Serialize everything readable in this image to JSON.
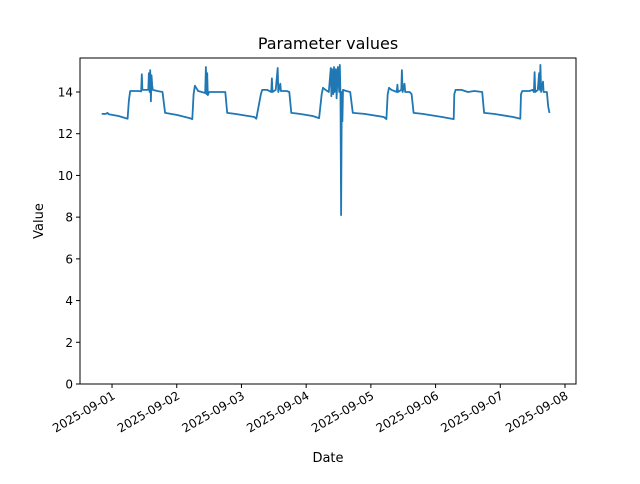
{
  "chart_data": {
    "type": "line",
    "title": "Parameter values",
    "xlabel": "Date",
    "ylabel": "Value",
    "x_unit": "days since 2025-09-01",
    "xlim": [
      -0.495,
      7.17
    ],
    "ylim": [
      0,
      15.63
    ],
    "grid": false,
    "line_color": "#1f77b4",
    "xticks": [
      {
        "value": 0,
        "label": "2025-09-01"
      },
      {
        "value": 1,
        "label": "2025-09-02"
      },
      {
        "value": 2,
        "label": "2025-09-03"
      },
      {
        "value": 3,
        "label": "2025-09-04"
      },
      {
        "value": 4,
        "label": "2025-09-05"
      },
      {
        "value": 5,
        "label": "2025-09-06"
      },
      {
        "value": 6,
        "label": "2025-09-07"
      },
      {
        "value": 7,
        "label": "2025-09-08"
      }
    ],
    "yticks": [
      {
        "value": 0,
        "label": "0"
      },
      {
        "value": 2,
        "label": "2"
      },
      {
        "value": 4,
        "label": "4"
      },
      {
        "value": 6,
        "label": "6"
      },
      {
        "value": 8,
        "label": "8"
      },
      {
        "value": 10,
        "label": "10"
      },
      {
        "value": 12,
        "label": "12"
      },
      {
        "value": 14,
        "label": "14"
      }
    ],
    "series": [
      {
        "name": "Value",
        "points": [
          [
            -0.16,
            12.95
          ],
          [
            -0.1,
            12.95
          ],
          [
            -0.07,
            13.0
          ],
          [
            -0.05,
            12.93
          ],
          [
            0.1,
            12.85
          ],
          [
            0.24,
            12.72
          ],
          [
            0.26,
            13.6
          ],
          [
            0.28,
            14.05
          ],
          [
            0.4,
            14.05
          ],
          [
            0.45,
            14.03
          ],
          [
            0.46,
            14.85
          ],
          [
            0.47,
            14.1
          ],
          [
            0.56,
            14.1
          ],
          [
            0.57,
            14.9
          ],
          [
            0.58,
            14.0
          ],
          [
            0.59,
            15.05
          ],
          [
            0.6,
            13.55
          ],
          [
            0.61,
            14.8
          ],
          [
            0.62,
            14.3
          ],
          [
            0.63,
            14.1
          ],
          [
            0.7,
            14.05
          ],
          [
            0.78,
            14.0
          ],
          [
            0.82,
            13.0
          ],
          [
            1.0,
            12.9
          ],
          [
            1.2,
            12.75
          ],
          [
            1.24,
            12.7
          ],
          [
            1.26,
            13.9
          ],
          [
            1.28,
            14.3
          ],
          [
            1.3,
            14.2
          ],
          [
            1.33,
            14.05
          ],
          [
            1.44,
            13.95
          ],
          [
            1.45,
            15.2
          ],
          [
            1.46,
            13.9
          ],
          [
            1.47,
            14.9
          ],
          [
            1.48,
            13.85
          ],
          [
            1.5,
            14.0
          ],
          [
            1.6,
            14.0
          ],
          [
            1.75,
            14.0
          ],
          [
            1.78,
            13.0
          ],
          [
            1.9,
            12.95
          ],
          [
            2.2,
            12.8
          ],
          [
            2.23,
            12.72
          ],
          [
            2.3,
            13.9
          ],
          [
            2.32,
            14.1
          ],
          [
            2.4,
            14.1
          ],
          [
            2.46,
            14.0
          ],
          [
            2.47,
            14.65
          ],
          [
            2.48,
            14.0
          ],
          [
            2.53,
            14.1
          ],
          [
            2.56,
            15.15
          ],
          [
            2.57,
            14.0
          ],
          [
            2.6,
            14.4
          ],
          [
            2.61,
            14.05
          ],
          [
            2.7,
            14.05
          ],
          [
            2.74,
            14.0
          ],
          [
            2.77,
            13.0
          ],
          [
            2.9,
            12.95
          ],
          [
            3.1,
            12.85
          ],
          [
            3.2,
            12.75
          ],
          [
            3.24,
            13.9
          ],
          [
            3.26,
            14.2
          ],
          [
            3.3,
            14.1
          ],
          [
            3.35,
            14.0
          ],
          [
            3.38,
            15.15
          ],
          [
            3.39,
            13.8
          ],
          [
            3.4,
            15.1
          ],
          [
            3.42,
            13.9
          ],
          [
            3.43,
            15.2
          ],
          [
            3.44,
            14.0
          ],
          [
            3.46,
            15.1
          ],
          [
            3.47,
            13.7
          ],
          [
            3.49,
            15.2
          ],
          [
            3.51,
            14.0
          ],
          [
            3.52,
            15.3
          ],
          [
            3.53,
            13.8
          ],
          [
            3.54,
            8.1
          ],
          [
            3.55,
            14.0
          ],
          [
            3.56,
            12.6
          ],
          [
            3.57,
            14.1
          ],
          [
            3.62,
            14.05
          ],
          [
            3.68,
            14.0
          ],
          [
            3.72,
            13.0
          ],
          [
            3.9,
            12.95
          ],
          [
            4.2,
            12.8
          ],
          [
            4.24,
            12.7
          ],
          [
            4.26,
            13.9
          ],
          [
            4.28,
            14.2
          ],
          [
            4.32,
            14.1
          ],
          [
            4.4,
            14.0
          ],
          [
            4.41,
            14.35
          ],
          [
            4.42,
            14.0
          ],
          [
            4.47,
            14.1
          ],
          [
            4.48,
            15.05
          ],
          [
            4.49,
            14.0
          ],
          [
            4.52,
            14.4
          ],
          [
            4.53,
            14.0
          ],
          [
            4.6,
            14.0
          ],
          [
            4.63,
            13.9
          ],
          [
            4.66,
            13.0
          ],
          [
            4.8,
            12.95
          ],
          [
            5.1,
            12.8
          ],
          [
            5.28,
            12.7
          ],
          [
            5.29,
            13.9
          ],
          [
            5.31,
            14.1
          ],
          [
            5.4,
            14.1
          ],
          [
            5.5,
            14.0
          ],
          [
            5.6,
            14.05
          ],
          [
            5.72,
            14.0
          ],
          [
            5.75,
            13.0
          ],
          [
            5.9,
            12.95
          ],
          [
            6.2,
            12.8
          ],
          [
            6.31,
            12.72
          ],
          [
            6.32,
            13.9
          ],
          [
            6.34,
            14.05
          ],
          [
            6.45,
            14.05
          ],
          [
            6.5,
            14.1
          ],
          [
            6.52,
            14.0
          ],
          [
            6.53,
            14.95
          ],
          [
            6.54,
            14.0
          ],
          [
            6.58,
            14.1
          ],
          [
            6.6,
            14.9
          ],
          [
            6.61,
            14.1
          ],
          [
            6.62,
            15.3
          ],
          [
            6.63,
            14.0
          ],
          [
            6.66,
            14.5
          ],
          [
            6.67,
            14.0
          ],
          [
            6.72,
            14.0
          ],
          [
            6.74,
            13.3
          ],
          [
            6.76,
            13.0
          ]
        ]
      }
    ]
  }
}
